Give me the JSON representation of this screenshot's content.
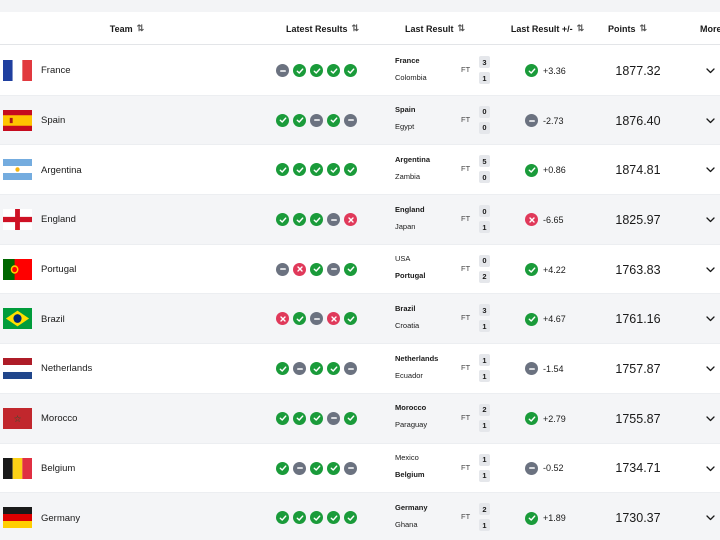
{
  "header": {
    "team": "Team",
    "latest_results": "Latest Results",
    "last_result": "Last Result",
    "last_result_change": "Last Result +/-",
    "points": "Points",
    "more": "More"
  },
  "result_type": "FT",
  "colors": {
    "win": "#1a9b3a",
    "draw": "#6b7280",
    "loss": "#e0395a"
  },
  "rows": [
    {
      "team": "France",
      "flag": "france",
      "results": [
        "D",
        "W",
        "W",
        "W",
        "W"
      ],
      "home": {
        "name": "France",
        "flag": "france",
        "bold": true,
        "score": "3"
      },
      "away": {
        "name": "Colombia",
        "flag": "colombia",
        "bold": false,
        "score": "1"
      },
      "outcome": "W",
      "change": "+3.36",
      "points": "1877.32"
    },
    {
      "team": "Spain",
      "flag": "spain",
      "results": [
        "W",
        "W",
        "D",
        "W",
        "D"
      ],
      "home": {
        "name": "Spain",
        "flag": "spain",
        "bold": true,
        "score": "0"
      },
      "away": {
        "name": "Egypt",
        "flag": "egypt",
        "bold": false,
        "score": "0"
      },
      "outcome": "D",
      "change": "-2.73",
      "points": "1876.40"
    },
    {
      "team": "Argentina",
      "flag": "argentina",
      "results": [
        "W",
        "W",
        "W",
        "W",
        "W"
      ],
      "home": {
        "name": "Argentina",
        "flag": "argentina",
        "bold": true,
        "score": "5"
      },
      "away": {
        "name": "Zambia",
        "flag": "zambia",
        "bold": false,
        "score": "0"
      },
      "outcome": "W",
      "change": "+0.86",
      "points": "1874.81"
    },
    {
      "team": "England",
      "flag": "england",
      "results": [
        "W",
        "W",
        "W",
        "D",
        "L"
      ],
      "home": {
        "name": "England",
        "flag": "england",
        "bold": true,
        "score": "0"
      },
      "away": {
        "name": "Japan",
        "flag": "japan",
        "bold": false,
        "score": "1"
      },
      "outcome": "L",
      "change": "-6.65",
      "points": "1825.97"
    },
    {
      "team": "Portugal",
      "flag": "portugal",
      "results": [
        "D",
        "L",
        "W",
        "D",
        "W"
      ],
      "home": {
        "name": "USA",
        "flag": "usa",
        "bold": false,
        "score": "0"
      },
      "away": {
        "name": "Portugal",
        "flag": "portugal",
        "bold": true,
        "score": "2"
      },
      "outcome": "W",
      "change": "+4.22",
      "points": "1763.83"
    },
    {
      "team": "Brazil",
      "flag": "brazil",
      "results": [
        "L",
        "W",
        "D",
        "L",
        "W"
      ],
      "home": {
        "name": "Brazil",
        "flag": "brazil",
        "bold": true,
        "score": "3"
      },
      "away": {
        "name": "Croatia",
        "flag": "croatia",
        "bold": false,
        "score": "1"
      },
      "outcome": "W",
      "change": "+4.67",
      "points": "1761.16"
    },
    {
      "team": "Netherlands",
      "flag": "netherlands",
      "results": [
        "W",
        "D",
        "W",
        "W",
        "D"
      ],
      "home": {
        "name": "Netherlands",
        "flag": "netherlands",
        "bold": true,
        "score": "1"
      },
      "away": {
        "name": "Ecuador",
        "flag": "ecuador",
        "bold": false,
        "score": "1"
      },
      "outcome": "D",
      "change": "-1.54",
      "points": "1757.87"
    },
    {
      "team": "Morocco",
      "flag": "morocco",
      "results": [
        "W",
        "W",
        "W",
        "D",
        "W"
      ],
      "home": {
        "name": "Morocco",
        "flag": "morocco",
        "bold": true,
        "score": "2"
      },
      "away": {
        "name": "Paraguay",
        "flag": "paraguay",
        "bold": false,
        "score": "1"
      },
      "outcome": "W",
      "change": "+2.79",
      "points": "1755.87"
    },
    {
      "team": "Belgium",
      "flag": "belgium",
      "results": [
        "W",
        "D",
        "W",
        "W",
        "D"
      ],
      "home": {
        "name": "Mexico",
        "flag": "mexico",
        "bold": false,
        "score": "1"
      },
      "away": {
        "name": "Belgium",
        "flag": "belgium",
        "bold": true,
        "score": "1"
      },
      "outcome": "D",
      "change": "-0.52",
      "points": "1734.71"
    },
    {
      "team": "Germany",
      "flag": "germany",
      "results": [
        "W",
        "W",
        "W",
        "W",
        "W"
      ],
      "home": {
        "name": "Germany",
        "flag": "germany",
        "bold": true,
        "score": "2"
      },
      "away": {
        "name": "Ghana",
        "flag": "ghana",
        "bold": false,
        "score": "1"
      },
      "outcome": "W",
      "change": "+1.89",
      "points": "1730.37"
    }
  ]
}
